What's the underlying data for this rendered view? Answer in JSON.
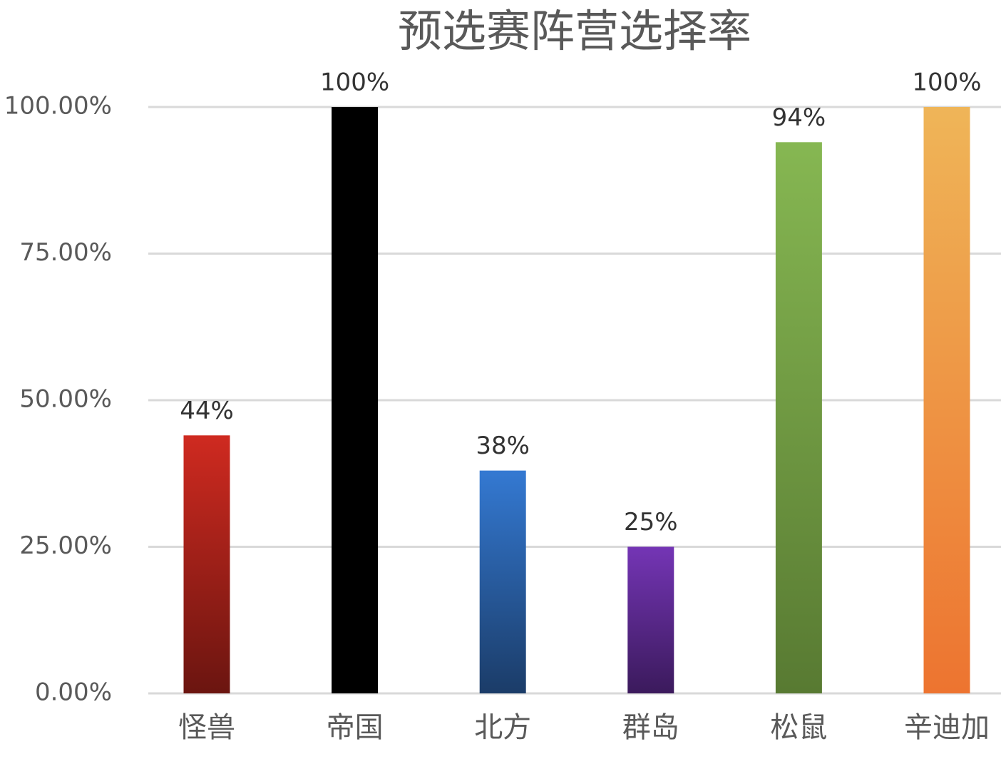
{
  "chart_data": {
    "type": "bar",
    "title": "预选赛阵营选择率",
    "categories": [
      "怪兽",
      "帝国",
      "北方",
      "群岛",
      "松鼠",
      "辛迪加"
    ],
    "values": [
      44,
      100,
      38,
      25,
      94,
      100
    ],
    "value_labels": [
      "44%",
      "100%",
      "38%",
      "25%",
      "94%",
      "100%"
    ],
    "colors": [
      [
        "#cf2a20",
        "#6b1510"
      ],
      [
        "#000000",
        "#000000"
      ],
      [
        "#3479d2",
        "#1b3c68"
      ],
      [
        "#7435b5",
        "#3b1a5c"
      ],
      [
        "#86b752",
        "#587a32"
      ],
      [
        "#efb558",
        "#ed7430"
      ]
    ],
    "ylim": [
      0,
      100
    ],
    "yticks": [
      {
        "value": 0,
        "label": "0.00%"
      },
      {
        "value": 25,
        "label": "25.00%"
      },
      {
        "value": 50,
        "label": "50.00%"
      },
      {
        "value": 75,
        "label": "75.00%"
      },
      {
        "value": 100,
        "label": "100.00%"
      }
    ],
    "grid": true
  }
}
